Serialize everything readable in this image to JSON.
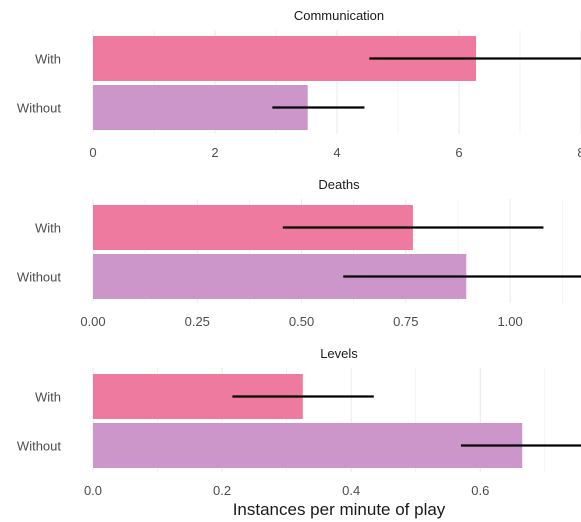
{
  "chart_data": {
    "type": "bar",
    "orientation": "horizontal",
    "xlabel": "Instances per minute of play",
    "colors": {
      "With": "#ee7a9f",
      "Without": "#cc96cb",
      "error_bar": "#000000",
      "grid": "#ebebeb"
    },
    "grid": true,
    "panels": [
      {
        "title": "Communication",
        "categories": [
          "With",
          "Without"
        ],
        "values": [
          6.28,
          3.52
        ],
        "error_low": [
          4.53,
          2.94
        ],
        "error_high": [
          8.1,
          4.45
        ],
        "xlim": [
          0,
          8
        ],
        "ticks": [
          0,
          2,
          4,
          6,
          8
        ],
        "tick_labels": [
          "0",
          "2",
          "4",
          "6",
          "8"
        ]
      },
      {
        "title": "Deaths",
        "categories": [
          "With",
          "Without"
        ],
        "values": [
          0.767,
          0.895
        ],
        "error_low": [
          0.455,
          0.6
        ],
        "error_high": [
          1.08,
          1.18
        ],
        "xlim": [
          0,
          1.17
        ],
        "ticks": [
          0,
          0.25,
          0.5,
          0.75,
          1.0
        ],
        "tick_labels": [
          "0.00",
          "0.25",
          "0.50",
          "0.75",
          "1.00"
        ]
      },
      {
        "title": "Levels",
        "categories": [
          "With",
          "Without"
        ],
        "values": [
          0.325,
          0.665
        ],
        "error_low": [
          0.216,
          0.57
        ],
        "error_high": [
          0.435,
          0.76
        ],
        "xlim": [
          0,
          0.756
        ],
        "ticks": [
          0,
          0.2,
          0.4,
          0.6
        ],
        "tick_labels": [
          "0.0",
          "0.2",
          "0.4",
          "0.6"
        ]
      }
    ]
  }
}
